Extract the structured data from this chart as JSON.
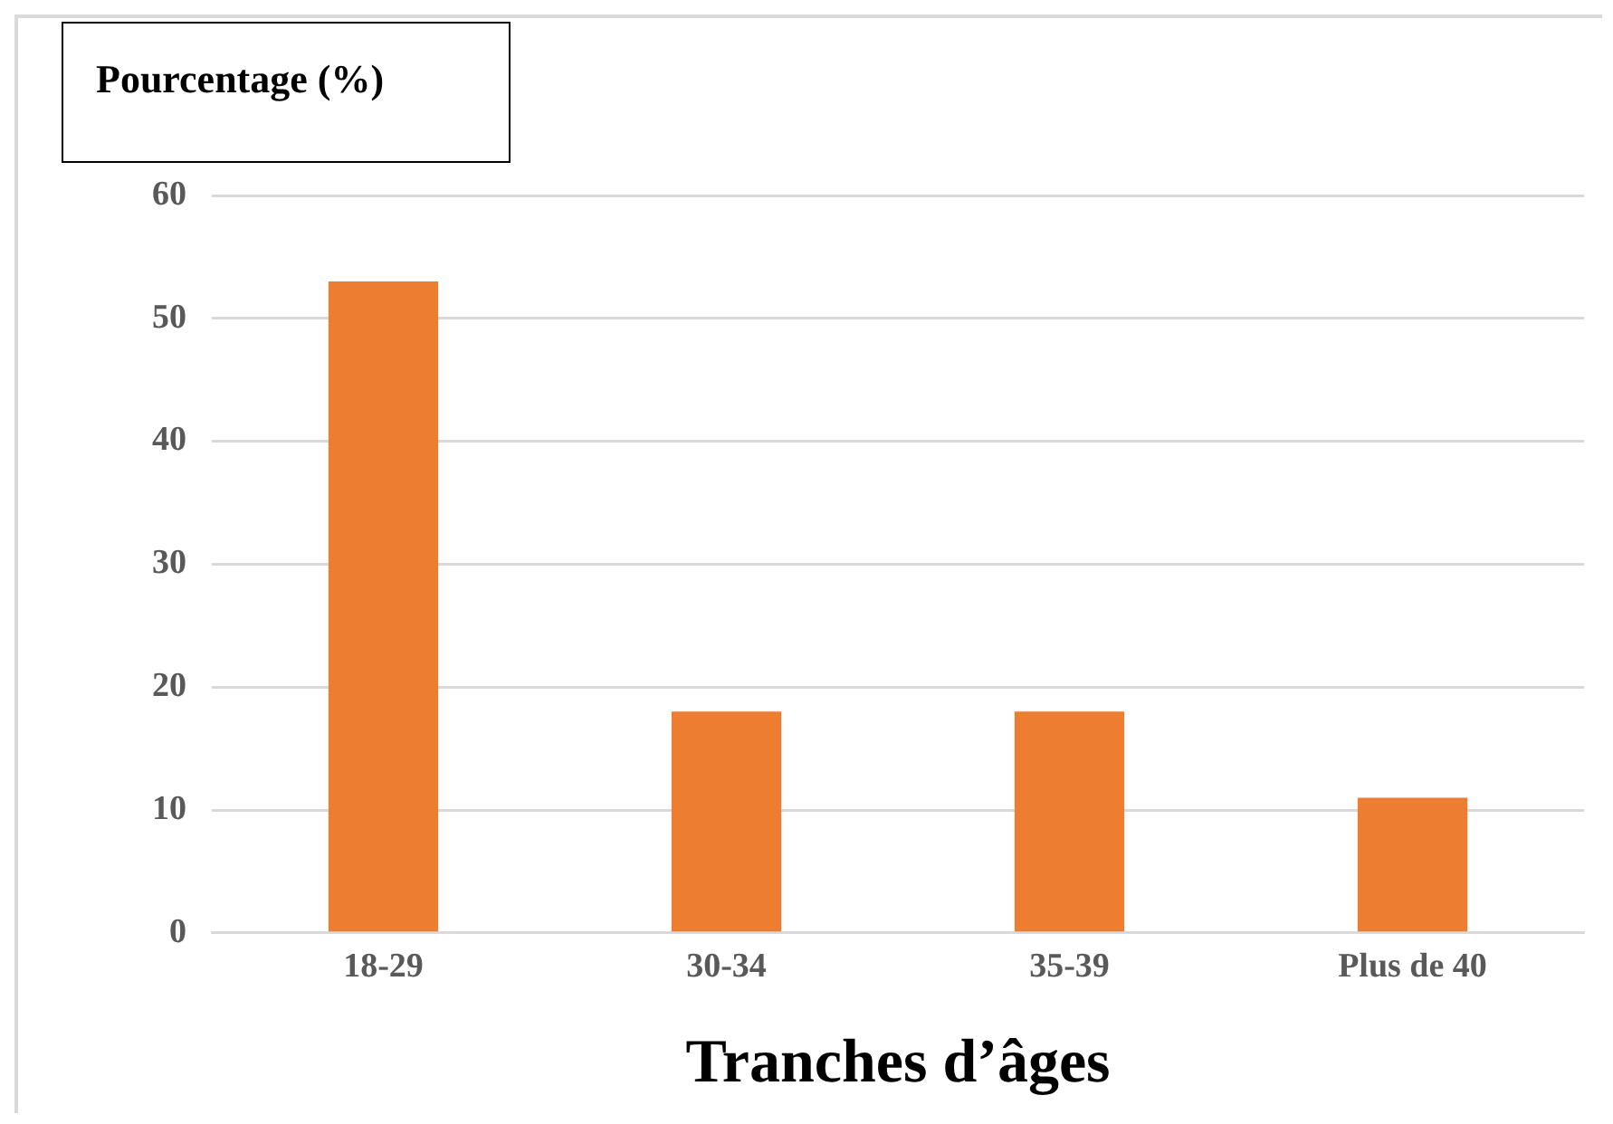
{
  "chart_data": {
    "type": "bar",
    "ylabel": "Pourcentage (%)",
    "xlabel": "Tranches d’âges",
    "categories": [
      "18-29",
      "30-34",
      "35-39",
      "Plus de 40"
    ],
    "values": [
      53,
      18,
      18,
      11
    ],
    "color": "#ed7d31",
    "ylim": [
      0,
      60
    ],
    "yticks": [
      0,
      10,
      20,
      30,
      40,
      50,
      60
    ],
    "grid": "y",
    "legend": false
  }
}
